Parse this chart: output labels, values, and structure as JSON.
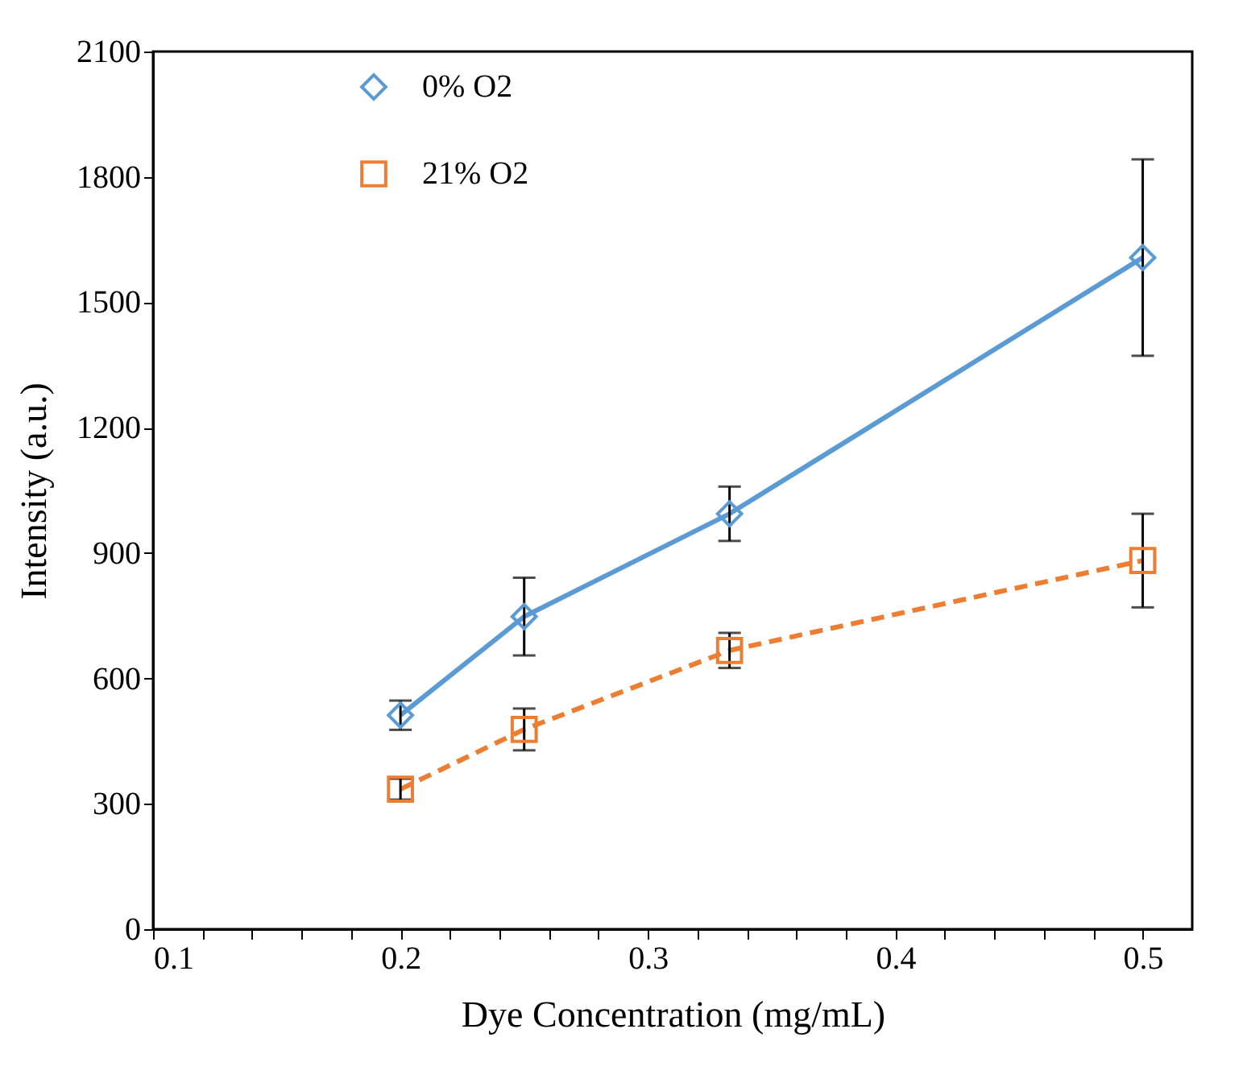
{
  "chart_data": {
    "type": "line",
    "xlabel": "Dye Concentration (mg/mL)",
    "ylabel": "Intensity (a.u.)",
    "xlim": [
      0.1,
      0.52
    ],
    "xticks": [
      0.1,
      {
        "value": 0.12,
        "label": null
      },
      {
        "value": 0.14,
        "label": null
      },
      {
        "value": 0.16,
        "label": null
      },
      {
        "value": 0.18,
        "label": null
      },
      0.2,
      {
        "value": 0.22,
        "label": null
      },
      {
        "value": 0.24,
        "label": null
      },
      {
        "value": 0.26,
        "label": null
      },
      {
        "value": 0.28,
        "label": null
      },
      0.3,
      {
        "value": 0.32,
        "label": null
      },
      {
        "value": 0.34,
        "label": null
      },
      {
        "value": 0.36,
        "label": null
      },
      {
        "value": 0.38,
        "label": null
      },
      0.4,
      {
        "value": 0.42,
        "label": null
      },
      {
        "value": 0.44,
        "label": null
      },
      {
        "value": 0.46,
        "label": null
      },
      {
        "value": 0.48,
        "label": null
      },
      0.5
    ],
    "ylim": [
      0,
      2100
    ],
    "yticks": [
      0,
      300,
      600,
      900,
      1200,
      1500,
      1800,
      2100
    ],
    "x": [
      0.2,
      0.25,
      0.333,
      0.5
    ],
    "series": [
      {
        "name": "0% O2",
        "color": "#5b9bd5",
        "marker": "diamond",
        "line_style": "solid",
        "values": [
          512,
          748,
          994,
          1607
        ],
        "errors": [
          35,
          93,
          65,
          235
        ]
      },
      {
        "name": "21% O2",
        "color": "#ed7d31",
        "marker": "square",
        "line_style": "dashed",
        "values": [
          335,
          478,
          667,
          882
        ],
        "errors": [
          25,
          50,
          42,
          112
        ]
      }
    ],
    "grid": false,
    "legend": "top left"
  }
}
